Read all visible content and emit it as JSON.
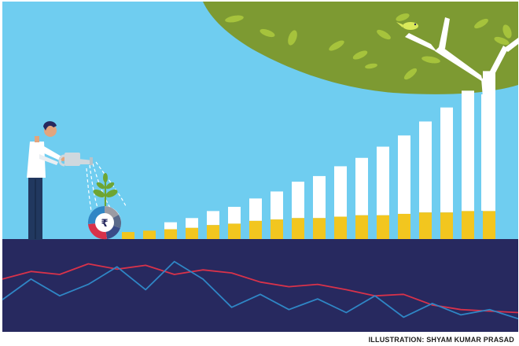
{
  "credit": "ILLUSTRATION: SHYAM KUMAR PRASAD",
  "rupee_symbol": "₹",
  "colors": {
    "sky": "#6fcdf0",
    "ground": "#27295f",
    "foliage": "#7d9a32",
    "leaf": "#a6c33c",
    "bar_white": "#ffffff",
    "bar_gold": "#f2c61f",
    "line_red": "#d8324a",
    "line_blue": "#2f86c5",
    "person_shirt": "#ffffff",
    "person_pants": "#21385f",
    "plant": "#6ea533"
  },
  "icons": [
    "watering-can-icon",
    "rupee-pie-icon",
    "tree-icon",
    "plant-icon",
    "person-icon",
    "bird-icon"
  ],
  "bars": [
    {
      "white": 0.0,
      "gold": 0.05
    },
    {
      "white": 0.0,
      "gold": 0.06
    },
    {
      "white": 0.05,
      "gold": 0.07
    },
    {
      "white": 0.07,
      "gold": 0.08
    },
    {
      "white": 0.1,
      "gold": 0.1
    },
    {
      "white": 0.12,
      "gold": 0.11
    },
    {
      "white": 0.16,
      "gold": 0.13
    },
    {
      "white": 0.2,
      "gold": 0.14
    },
    {
      "white": 0.26,
      "gold": 0.15
    },
    {
      "white": 0.3,
      "gold": 0.15
    },
    {
      "white": 0.36,
      "gold": 0.16
    },
    {
      "white": 0.41,
      "gold": 0.17
    },
    {
      "white": 0.49,
      "gold": 0.17
    },
    {
      "white": 0.56,
      "gold": 0.18
    },
    {
      "white": 0.65,
      "gold": 0.19
    },
    {
      "white": 0.75,
      "gold": 0.19
    },
    {
      "white": 0.86,
      "gold": 0.2
    },
    {
      "white": 1.0,
      "gold": 0.2
    }
  ],
  "red_line": [
    0.62,
    0.72,
    0.68,
    0.82,
    0.75,
    0.8,
    0.68,
    0.74,
    0.7,
    0.58,
    0.52,
    0.55,
    0.48,
    0.4,
    0.42,
    0.28,
    0.22,
    0.2,
    0.18
  ],
  "blue_line": [
    0.35,
    0.62,
    0.4,
    0.55,
    0.78,
    0.48,
    0.85,
    0.62,
    0.25,
    0.42,
    0.22,
    0.36,
    0.18,
    0.4,
    0.12,
    0.3,
    0.15,
    0.22,
    0.1
  ]
}
